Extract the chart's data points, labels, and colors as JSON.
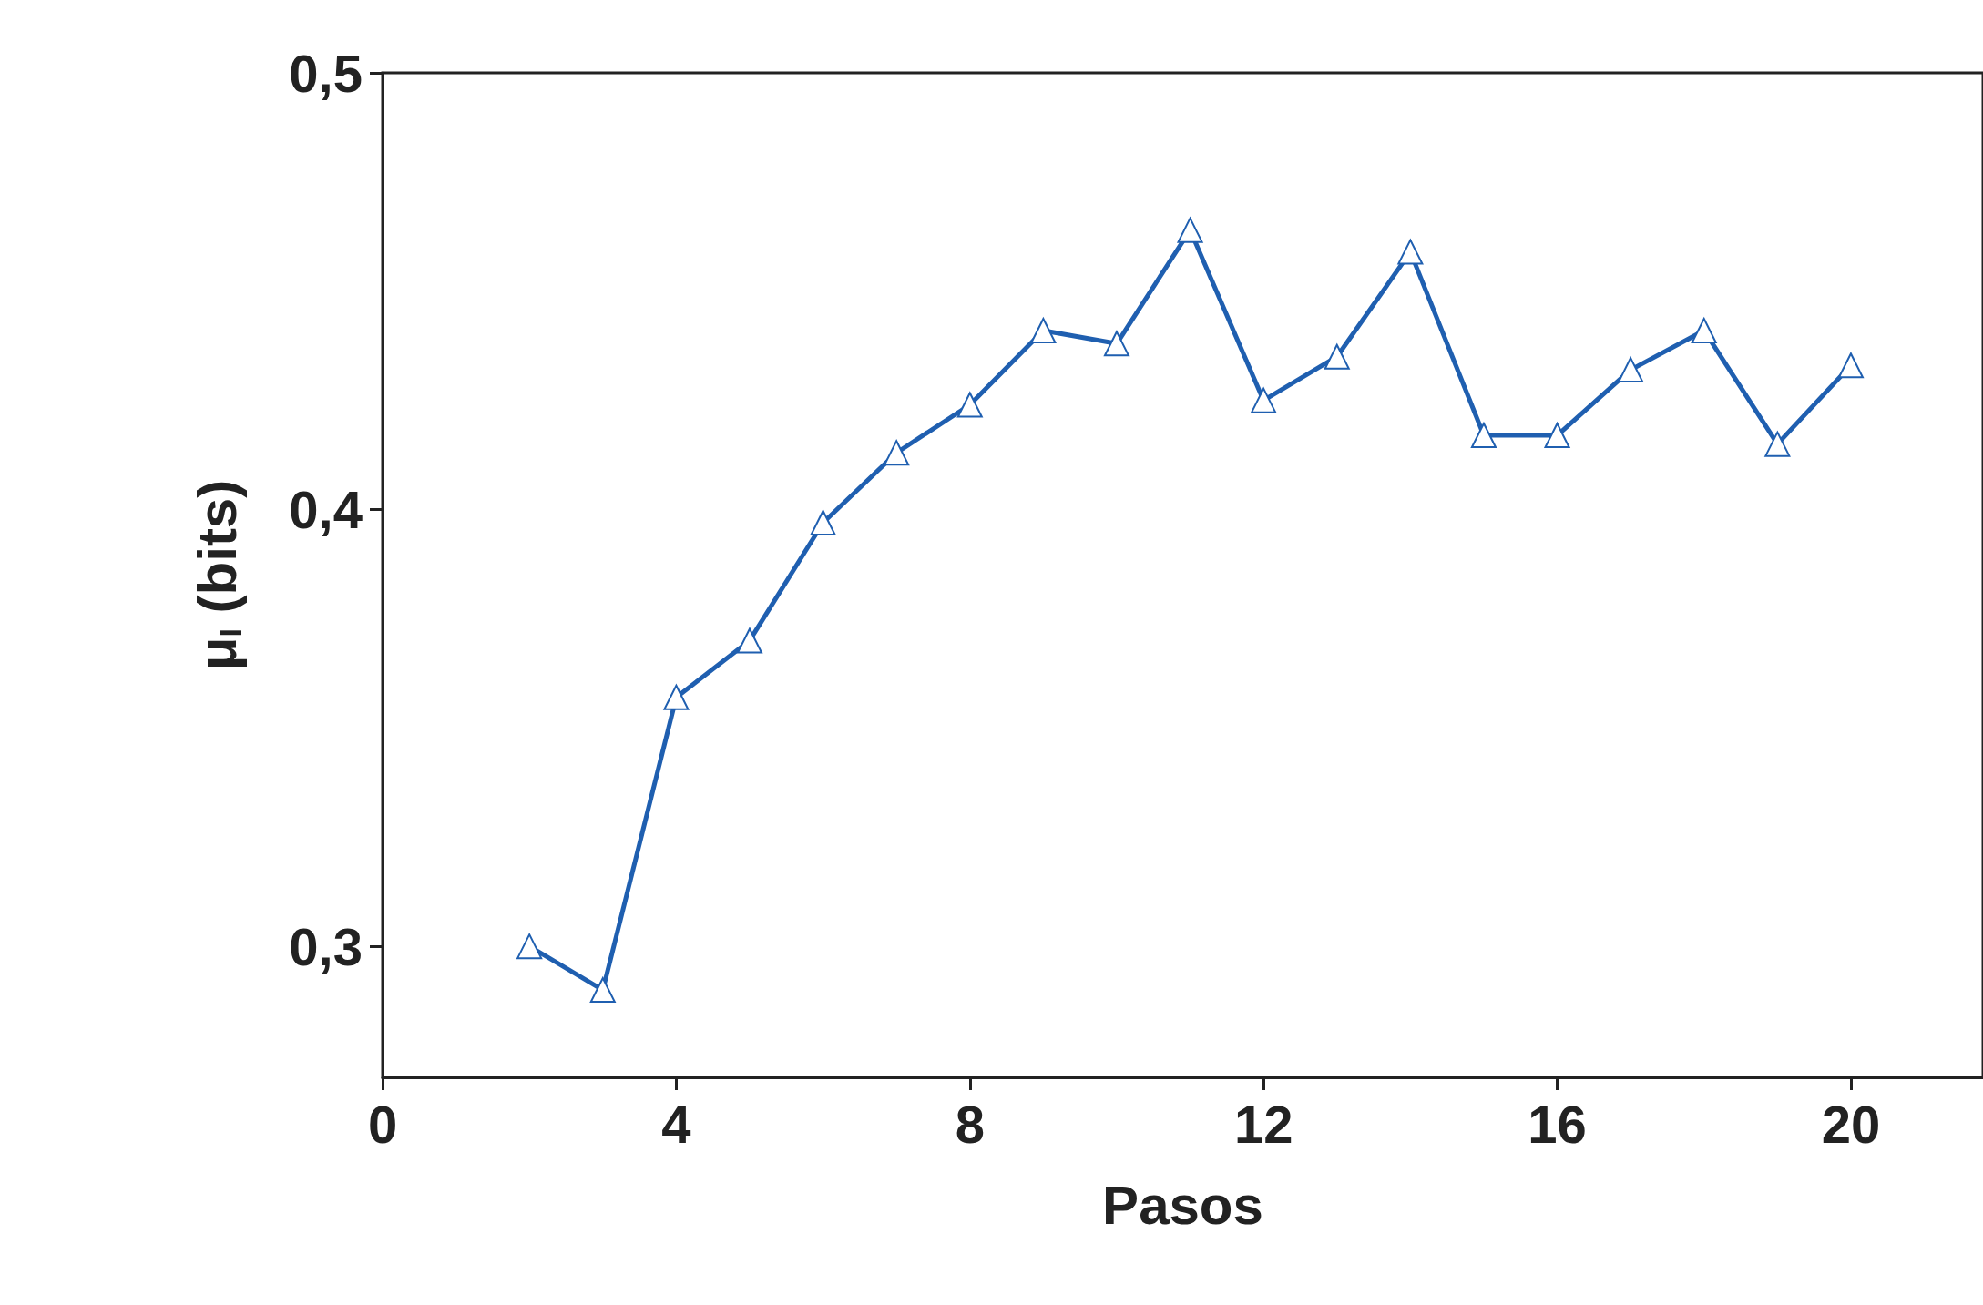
{
  "chart_data": {
    "type": "line",
    "xlabel": "Pasos",
    "ylabel": "μ$_{I}$ (bits)",
    "x": [
      2,
      3,
      4,
      5,
      6,
      7,
      8,
      9,
      10,
      11,
      12,
      13,
      14,
      15,
      16,
      17,
      18,
      19,
      20
    ],
    "series": [
      {
        "color": "#1f5fb0",
        "values": [
          0.3,
          0.29,
          0.357,
          0.37,
          0.397,
          0.413,
          0.424,
          0.441,
          0.438,
          0.464,
          0.425,
          0.435,
          0.459,
          0.417,
          0.417,
          0.432,
          0.441,
          0.415,
          0.433
        ]
      }
    ],
    "xlim": [
      0,
      21.8
    ],
    "xticks": [
      0,
      4,
      8,
      12,
      16,
      20
    ],
    "ylim": [
      0.27,
      0.5
    ],
    "yticks": [
      {
        "value": 0.3,
        "label": "0,3"
      },
      {
        "value": 0.4,
        "label": "0,4"
      },
      {
        "value": 0.5,
        "label": "0,5"
      }
    ],
    "grid": false,
    "marker": "triangle",
    "line_style": "solid"
  }
}
